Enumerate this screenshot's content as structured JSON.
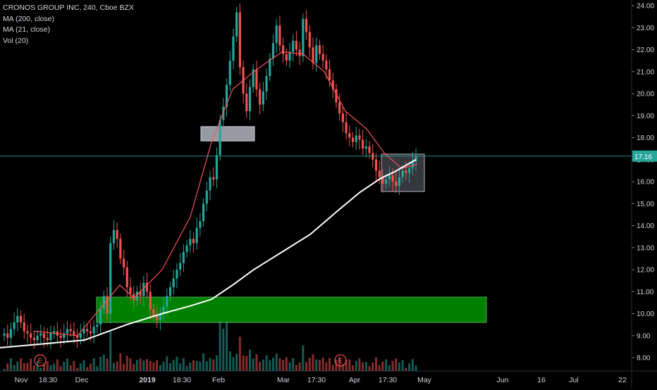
{
  "legend": {
    "symbol": "CRONOS GROUP INC, 240, Cboe BZX",
    "ma200": "MA (200, close)",
    "ma21": "MA (21, close)",
    "vol": "Vol (20)"
  },
  "price_label": "17.16",
  "earnings_marker": "E",
  "colors": {
    "background": "#000000",
    "up": "#26a69a",
    "down": "#ef5350",
    "ma200": "#ffffff",
    "ma21": "#f7525f",
    "support_zone": "#008000",
    "box": "#b2b5be",
    "price_line": "#26a69a",
    "axis_text": "#d1d4dc"
  },
  "chart_data": {
    "type": "candlestick",
    "title": "CRONOS GROUP INC, 240, Cboe BZX",
    "y_ticks": [
      "8.00",
      "9.00",
      "10.00",
      "11.00",
      "12.00",
      "13.00",
      "14.00",
      "15.00",
      "16.00",
      "17.00",
      "18.00",
      "19.00",
      "20.00",
      "21.00",
      "22.00",
      "23.00",
      "24.00"
    ],
    "ylim": [
      7.6,
      24.3
    ],
    "x_ticks": [
      "Nov",
      "18:30",
      "Dec",
      "2019",
      "18:30",
      "Feb",
      "Mar",
      "17:30",
      "Apr",
      "17:30",
      "May",
      "Jun",
      "16",
      "Jul",
      "22"
    ],
    "last_price": 17.16,
    "closes": [
      9.1,
      8.9,
      9.3,
      9.6,
      9.9,
      9.6,
      9.2,
      9.1,
      8.9,
      8.8,
      9.0,
      9.1,
      8.9,
      8.8,
      9.1,
      9.2,
      9.0,
      8.9,
      9.1,
      9.3,
      9.2,
      9.0,
      8.9,
      9.1,
      9.3,
      9.2,
      9.1,
      9.4,
      9.5,
      10.2,
      10.8,
      10.0,
      13.2,
      13.8,
      13.4,
      12.5,
      12.1,
      11.2,
      10.9,
      10.6,
      11.0,
      10.8,
      11.4,
      11.0,
      10.2,
      9.9,
      9.7,
      10.0,
      10.3,
      10.8,
      11.2,
      11.6,
      12.0,
      12.3,
      12.8,
      13.1,
      13.4,
      13.2,
      13.9,
      14.2,
      15.0,
      15.6,
      16.2,
      16.1,
      17.2,
      18.8,
      19.4,
      20.4,
      21.5,
      22.6,
      23.7,
      21.2,
      20.0,
      19.2,
      20.3,
      21.1,
      20.2,
      19.5,
      20.1,
      20.8,
      21.6,
      22.3,
      23.1,
      22.2,
      21.8,
      21.5,
      21.9,
      22.4,
      22.0,
      21.7,
      23.4,
      22.8,
      22.1,
      21.4,
      22.2,
      21.8,
      21.5,
      21.1,
      20.6,
      20.2,
      19.6,
      19.1,
      18.7,
      18.2,
      18.0,
      17.8,
      18.1,
      17.9,
      17.5,
      17.6,
      17.3,
      17.0,
      16.5,
      16.2,
      15.9,
      16.1,
      16.3,
      16.0,
      15.8,
      16.2,
      16.5,
      16.4,
      16.6,
      16.9,
      17.16
    ],
    "ma21_points": [
      [
        48,
        9.2
      ],
      [
        110,
        9.0
      ],
      [
        170,
        11.3
      ],
      [
        190,
        10.7
      ],
      [
        230,
        12.0
      ],
      [
        270,
        14.4
      ],
      [
        300,
        17.8
      ],
      [
        330,
        20.2
      ],
      [
        360,
        21.0
      ],
      [
        400,
        21.9
      ],
      [
        430,
        21.8
      ],
      [
        460,
        21.0
      ],
      [
        490,
        19.2
      ],
      [
        520,
        18.4
      ],
      [
        545,
        17.3
      ],
      [
        570,
        16.6
      ],
      [
        592,
        16.8
      ]
    ],
    "ma200_points": [
      [
        0,
        8.45
      ],
      [
        60,
        8.62
      ],
      [
        120,
        8.8
      ],
      [
        180,
        9.5
      ],
      [
        230,
        10.0
      ],
      [
        270,
        10.35
      ],
      [
        300,
        10.65
      ],
      [
        330,
        11.3
      ],
      [
        360,
        12.0
      ],
      [
        400,
        12.8
      ],
      [
        440,
        13.6
      ],
      [
        480,
        14.7
      ],
      [
        510,
        15.5
      ],
      [
        540,
        16.15
      ],
      [
        560,
        16.45
      ],
      [
        590,
        17.0
      ]
    ],
    "volume_scale": "Vol (20)",
    "zones": [
      {
        "kind": "support",
        "y_low": 9.6,
        "y_high": 10.75
      },
      {
        "kind": "resistance-box",
        "y_low": 17.85,
        "y_high": 18.5
      },
      {
        "kind": "consolidation-box",
        "y_low": 15.55,
        "y_high": 17.25
      }
    ]
  }
}
